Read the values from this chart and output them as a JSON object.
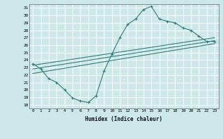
{
  "xlabel": "Humidex (Indice chaleur)",
  "ylabel": "",
  "bg_color": "#cce8e8",
  "grid_color": "#ffffff",
  "line_color": "#2d7d7d",
  "xlim": [
    -0.5,
    23.5
  ],
  "ylim": [
    17.5,
    31.5
  ],
  "xticks": [
    0,
    1,
    2,
    3,
    4,
    5,
    6,
    7,
    8,
    9,
    10,
    11,
    12,
    13,
    14,
    15,
    16,
    17,
    18,
    19,
    20,
    21,
    22,
    23
  ],
  "yticks": [
    18,
    19,
    20,
    21,
    22,
    23,
    24,
    25,
    26,
    27,
    28,
    29,
    30,
    31
  ],
  "curve1_x": [
    0,
    1,
    2,
    3,
    4,
    5,
    6,
    7,
    8,
    9,
    10,
    11,
    12,
    13,
    14,
    15,
    16,
    17,
    18,
    19,
    20,
    21,
    22,
    23
  ],
  "curve1_y": [
    23.5,
    22.8,
    21.5,
    21.0,
    20.0,
    18.9,
    18.5,
    18.3,
    19.2,
    22.5,
    24.8,
    27.0,
    28.8,
    29.5,
    30.8,
    31.2,
    29.5,
    29.2,
    29.0,
    28.3,
    28.0,
    27.2,
    26.5,
    26.5
  ],
  "line1_x": [
    0,
    23
  ],
  "line1_y": [
    22.8,
    26.6
  ],
  "line2_x": [
    0,
    23
  ],
  "line2_y": [
    23.3,
    27.0
  ],
  "line3_x": [
    0,
    23
  ],
  "line3_y": [
    22.2,
    26.2
  ]
}
